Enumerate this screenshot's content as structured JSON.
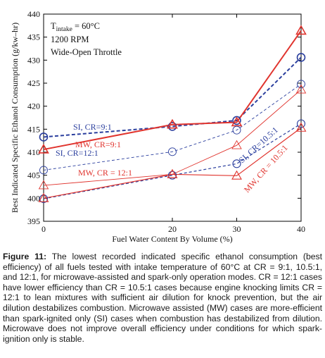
{
  "chart_data": {
    "type": "line",
    "x": [
      0,
      20,
      30,
      40
    ],
    "xlabel": "Fuel Water Content By Volume (%)",
    "ylabel": "Best Indicated Specific Ethanol Consumption (g/kw–hr)",
    "xlim": [
      0,
      40
    ],
    "ylim": [
      395,
      440
    ],
    "xticks": [
      "0",
      "20",
      "30",
      "40"
    ],
    "yticks": [
      "395",
      "400",
      "405",
      "410",
      "415",
      "420",
      "425",
      "430",
      "435",
      "440"
    ],
    "conditions": {
      "line1": "T",
      "line1_sub": "intake",
      "line1_rest": " = 60°C",
      "line2": "1200 RPM",
      "line3": "Wide-Open Throttle"
    },
    "series": [
      {
        "name": "SI, CR=9:1",
        "values": [
          413.3,
          415.6,
          416.9,
          430.6
        ],
        "color": "#2b3f9e",
        "marker": "circle",
        "style": "dashed",
        "weight": "bold"
      },
      {
        "name": "MW, CR=9:1",
        "values": [
          410.6,
          416.0,
          416.5,
          436.4
        ],
        "color": "#e0342e",
        "marker": "triangle",
        "style": "solid",
        "weight": "bold"
      },
      {
        "name": "SI, CR=12:1",
        "values": [
          406.1,
          410.1,
          414.8,
          424.8
        ],
        "color": "#2b3f9e",
        "marker": "circle",
        "style": "dashed",
        "weight": "thin"
      },
      {
        "name": "MW, CR = 12:1",
        "values": [
          402.8,
          405.2,
          411.5,
          423.6
        ],
        "color": "#e0342e",
        "marker": "triangle",
        "style": "solid",
        "weight": "thin"
      },
      {
        "name": "SI, CR=10.5:1",
        "values": [
          399.9,
          405.0,
          407.5,
          416.2
        ],
        "color": "#2b3f9e",
        "marker": "circle",
        "style": "dashed",
        "weight": "medium"
      },
      {
        "name": "MW, CR = 10.5:1",
        "values": [
          400.0,
          405.2,
          404.9,
          415.3
        ],
        "color": "#e0342e",
        "marker": "triangle",
        "style": "solid",
        "weight": "medium"
      }
    ],
    "annotations": [
      "SI, CR=9:1",
      "MW, CR=9:1",
      "SI, CR=12:1",
      "MW, CR = 12:1",
      "SI, CR=10.5:1",
      "MW, CR = 10.5:1"
    ]
  },
  "caption": {
    "label": "Figure 11:",
    "text": " The lowest recorded indicated specific ethanol consumption (best efficiency) of all fuels tested with intake temperature of 60°C at CR = 9:1, 10.5:1, and 12:1, for microwave-assisted and spark-only operation modes. CR = 12:1 cases have lower efficiency than CR = 10.5:1 cases because engine knocking limits CR = 12:1 to lean mixtures with sufficient air dilution for knock prevention, but the air dilution destabilizes combustion. Microwave assisted (MW) cases are more-efficient than spark-ignited only (SI) cases when combustion has destabilized from dilution. Microwave does not improve overall efficiency under conditions for which spark-ignition only is stable."
  }
}
